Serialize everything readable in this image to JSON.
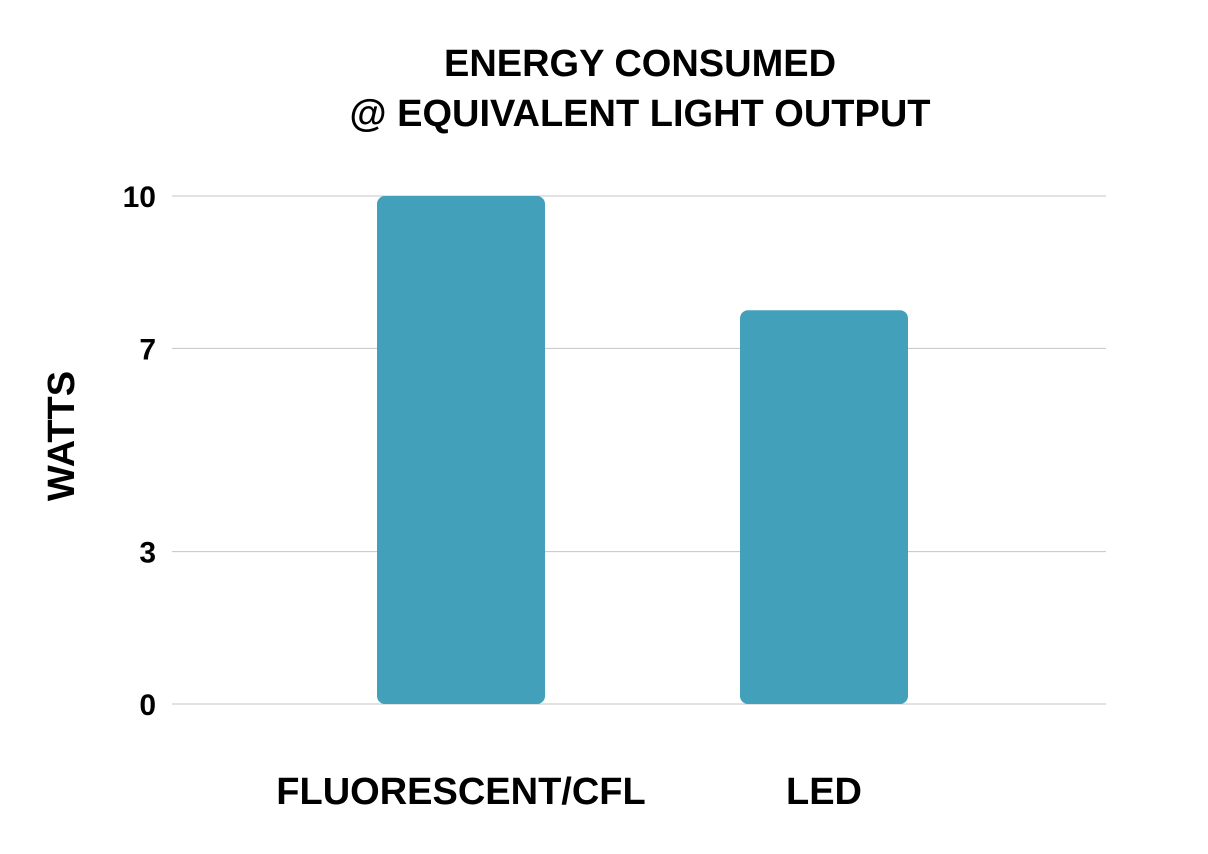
{
  "chart_data": {
    "type": "bar",
    "title_lines": [
      "ENERGY CONSUMED",
      "@ EQUIVALENT LIGHT OUTPUT"
    ],
    "xlabel": "",
    "ylabel": "WATTS",
    "categories": [
      "FLUORESCENT/CFL",
      "LED"
    ],
    "values": [
      10,
      7.75
    ],
    "ylim": [
      0,
      10
    ],
    "yticks": [
      0,
      3,
      7,
      10
    ],
    "grid": true,
    "legend": "none",
    "bar_color": "#42a0bb"
  }
}
